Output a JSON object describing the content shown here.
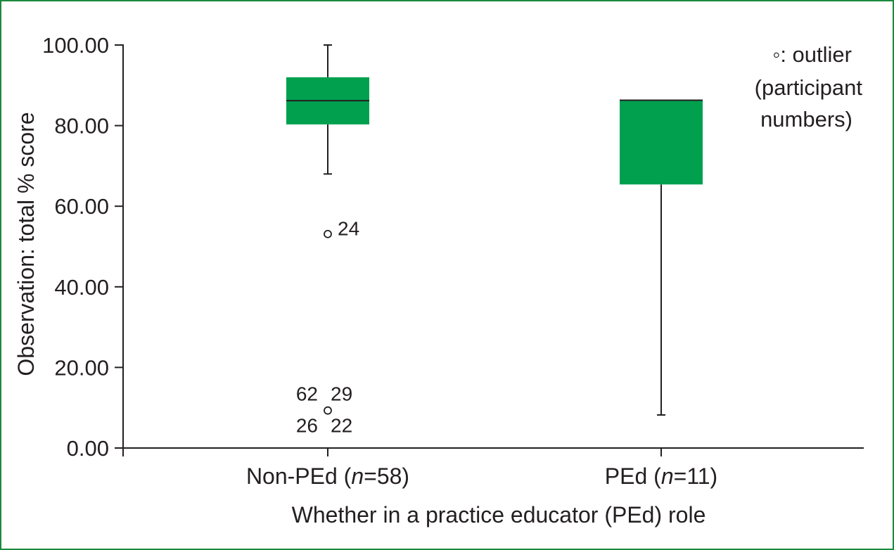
{
  "chart_data": {
    "type": "box",
    "ylabel": "Observation: total % score",
    "xlabel": "Whether in a practice educator (PEd) role",
    "ylim": [
      0,
      100
    ],
    "yticks": [
      "0.00",
      "20.00",
      "40.00",
      "60.00",
      "80.00",
      "100.00"
    ],
    "categories": [
      {
        "prefix": "Non-PEd (",
        "n_italic": "n",
        "suffix": "=58)"
      },
      {
        "prefix": "PEd (",
        "n_italic": "n",
        "suffix": "=11)"
      }
    ],
    "boxes": [
      {
        "whisker_low": 68,
        "q1": 80.3,
        "median": 86.2,
        "q3": 92,
        "whisker_high": 100,
        "outliers": [
          {
            "value": 53.1,
            "labels": [
              "24"
            ]
          },
          {
            "value": 9.3,
            "labels": [
              "62",
              "29",
              "26",
              "22"
            ]
          }
        ]
      },
      {
        "whisker_low": 8.2,
        "q1": 65.4,
        "median": 86.3,
        "q3": 86.3,
        "whisker_high": 86.3,
        "outliers": []
      }
    ],
    "box_color": "#00a04f",
    "legend": {
      "line1": "◦: outlier",
      "line2": "(participant",
      "line3": "numbers)"
    }
  }
}
